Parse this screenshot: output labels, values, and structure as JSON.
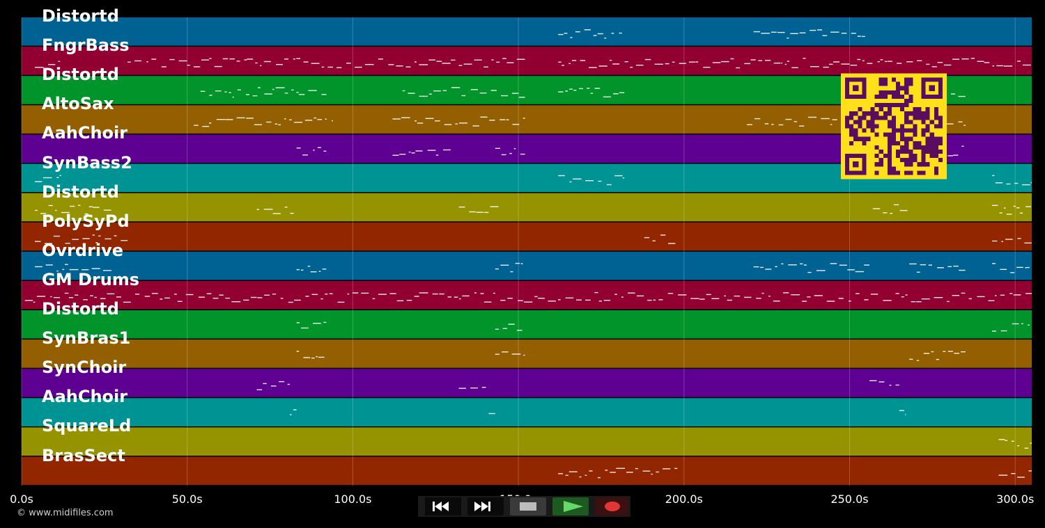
{
  "tracks": [
    {
      "name": "Distortd",
      "color": "#006193"
    },
    {
      "name": "FngrBass",
      "color": "#920032"
    },
    {
      "name": "Distortd",
      "color": "#00942a"
    },
    {
      "name": "AltoSax",
      "color": "#945f00"
    },
    {
      "name": "AahChoir",
      "color": "#5e0092"
    },
    {
      "name": "SynBass2",
      "color": "#009393"
    },
    {
      "name": "Distortd",
      "color": "#959300"
    },
    {
      "name": "PolySyPd",
      "color": "#922600"
    },
    {
      "name": "Ovrdrive",
      "color": "#006193"
    },
    {
      "name": "GM Drums",
      "color": "#920032"
    },
    {
      "name": "Distortd",
      "color": "#00942a"
    },
    {
      "name": "SynBras1",
      "color": "#945f00"
    },
    {
      "name": "SynChoir",
      "color": "#5e0092"
    },
    {
      "name": "AahChoir",
      "color": "#009393"
    },
    {
      "name": "SquareLd",
      "color": "#959300"
    },
    {
      "name": "BrasSect",
      "color": "#922600"
    }
  ],
  "timeline": {
    "end_seconds": 305,
    "ticks": [
      "0.0s",
      "50.0s",
      "100.0s",
      "150.0s",
      "200.0s",
      "250.0s",
      "300.0s"
    ],
    "tick_seconds": [
      0,
      50,
      100,
      150,
      200,
      250,
      300
    ]
  },
  "notes": [
    {
      "track": 0,
      "segments": [
        [
          162,
          182
        ],
        [
          221,
          256
        ]
      ]
    },
    {
      "track": 1,
      "segments": [
        [
          4,
          12
        ],
        [
          32,
          152
        ],
        [
          162,
          305
        ]
      ]
    },
    {
      "track": 2,
      "segments": [
        [
          54,
          92
        ],
        [
          115,
          152
        ],
        [
          162,
          182
        ],
        [
          273,
          285
        ]
      ]
    },
    {
      "track": 3,
      "segments": [
        [
          52,
          94
        ],
        [
          112,
          152
        ],
        [
          219,
          285
        ]
      ]
    },
    {
      "track": 4,
      "segments": [
        [
          83,
          92
        ],
        [
          112,
          130
        ],
        [
          143,
          152
        ],
        [
          273,
          285
        ]
      ]
    },
    {
      "track": 5,
      "segments": [
        [
          4,
          12
        ],
        [
          162,
          182
        ],
        [
          293,
          305
        ]
      ]
    },
    {
      "track": 6,
      "segments": [
        [
          4,
          28
        ],
        [
          71,
          83
        ],
        [
          132,
          144
        ],
        [
          257,
          268
        ],
        [
          293,
          305
        ]
      ]
    },
    {
      "track": 7,
      "segments": [
        [
          4,
          32
        ],
        [
          188,
          198
        ],
        [
          293,
          305
        ]
      ]
    },
    {
      "track": 8,
      "segments": [
        [
          4,
          28
        ],
        [
          83,
          92
        ],
        [
          143,
          152
        ],
        [
          221,
          256
        ],
        [
          268,
          285
        ],
        [
          293,
          305
        ]
      ]
    },
    {
      "track": 9,
      "segments": [
        [
          1,
          305
        ]
      ]
    },
    {
      "track": 10,
      "segments": [
        [
          83,
          92
        ],
        [
          143,
          152
        ],
        [
          293,
          305
        ]
      ]
    },
    {
      "track": 11,
      "segments": [
        [
          83,
          92
        ],
        [
          143,
          152
        ],
        [
          268,
          285
        ]
      ]
    },
    {
      "track": 12,
      "segments": [
        [
          71,
          81
        ],
        [
          132,
          141
        ],
        [
          256,
          265
        ]
      ]
    },
    {
      "track": 13,
      "segments": [
        [
          81,
          83
        ],
        [
          141,
          143
        ],
        [
          265,
          267
        ]
      ]
    },
    {
      "track": 14,
      "segments": [
        [
          295,
          305
        ]
      ]
    },
    {
      "track": 15,
      "segments": [
        [
          162,
          198
        ],
        [
          295,
          305
        ]
      ]
    }
  ],
  "footer": {
    "copyright": "© www.midifiles.com"
  },
  "transport": {
    "buttons": [
      {
        "name": "rewind",
        "icon": "rewind-icon"
      },
      {
        "name": "fast-forward",
        "icon": "fast-forward-icon"
      },
      {
        "name": "stop",
        "icon": "stop-icon"
      },
      {
        "name": "play",
        "icon": "play-icon"
      },
      {
        "name": "record",
        "icon": "record-icon"
      }
    ]
  },
  "colors": {
    "qr_fg": "#5a0d5f",
    "qr_bg": "#ffe01a"
  }
}
